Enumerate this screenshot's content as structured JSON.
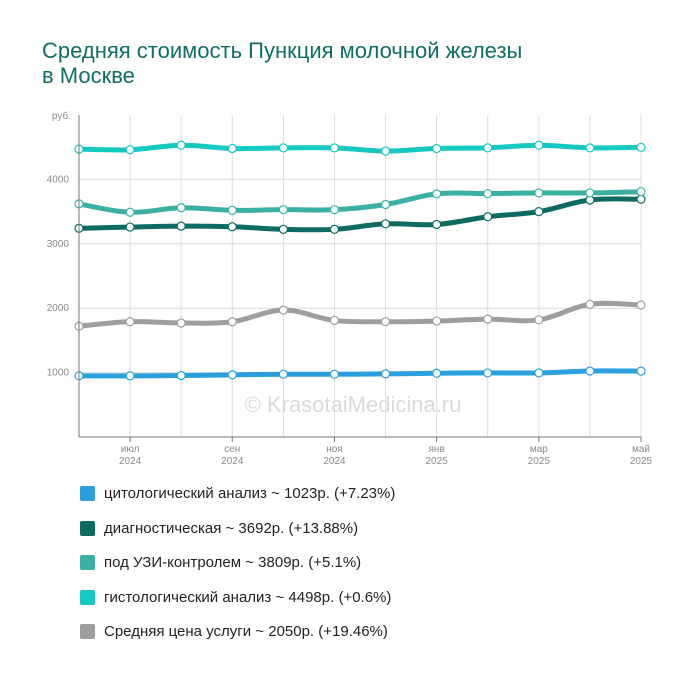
{
  "title_lines": [
    "Средняя стоимость Пункция молочной железы",
    "в Москве"
  ],
  "watermark": "© KrasotaiMedicina.ru",
  "chart_data": {
    "type": "line",
    "y_unit_label": "руб.",
    "ylim": [
      0,
      5000
    ],
    "yticks": [
      1000,
      2000,
      3000,
      4000
    ],
    "grid": true,
    "x_ticks": [
      {
        "month": "июл",
        "year": "2024",
        "index": 1
      },
      {
        "month": "сен",
        "year": "2024",
        "index": 3
      },
      {
        "month": "ноя",
        "year": "2024",
        "index": 5
      },
      {
        "month": "янв",
        "year": "2025",
        "index": 7
      },
      {
        "month": "мар",
        "year": "2025",
        "index": 9
      },
      {
        "month": "май",
        "year": "2025",
        "index": 11
      }
    ],
    "series": [
      {
        "key": "citology",
        "color": "#2a9fdb",
        "values": [
          950,
          950,
          955,
          965,
          975,
          975,
          980,
          990,
          995,
          995,
          1025,
          1023
        ]
      },
      {
        "key": "diagnostic",
        "color": "#0e6b61",
        "values": [
          3240,
          3260,
          3275,
          3265,
          3225,
          3225,
          3310,
          3300,
          3420,
          3500,
          3680,
          3692
        ]
      },
      {
        "key": "uzi",
        "color": "#3ab0a5",
        "values": [
          3620,
          3490,
          3560,
          3520,
          3530,
          3530,
          3610,
          3775,
          3780,
          3790,
          3790,
          3809
        ]
      },
      {
        "key": "histology",
        "color": "#14c9c2",
        "values": [
          4470,
          4460,
          4530,
          4480,
          4490,
          4490,
          4440,
          4480,
          4490,
          4530,
          4490,
          4498
        ]
      },
      {
        "key": "average",
        "color": "#9e9e9e",
        "values": [
          1720,
          1790,
          1770,
          1790,
          1970,
          1810,
          1790,
          1800,
          1830,
          1820,
          2060,
          2050
        ]
      }
    ]
  },
  "legend": [
    {
      "color": "#2a9fdb",
      "text": "цитологический анализ ~ 1023р. (+7.23%)"
    },
    {
      "color": "#0e6b61",
      "text": "диагностическая ~ 3692р. (+13.88%)"
    },
    {
      "color": "#3ab0a5",
      "text": "под УЗИ-контролем ~ 3809р. (+5.1%)"
    },
    {
      "color": "#14c9c2",
      "text": "гистологический анализ ~ 4498р. (+0.6%)"
    },
    {
      "color": "#9e9e9e",
      "text": "Средняя цена услуги ~ 2050р. (+19.46%)"
    }
  ]
}
